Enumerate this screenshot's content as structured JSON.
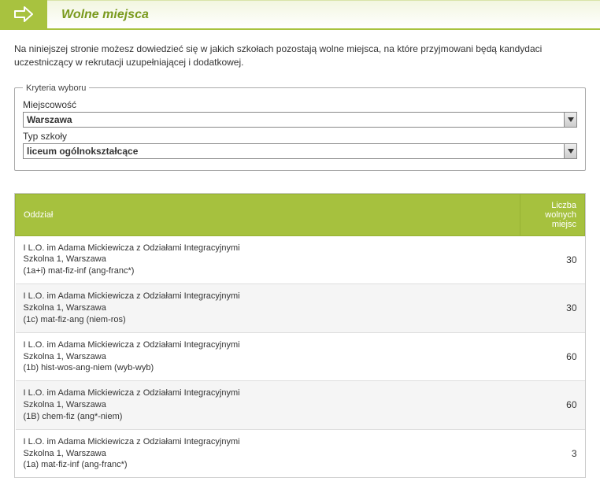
{
  "header": {
    "title": "Wolne miejsca"
  },
  "intro_text": "Na niniejszej stronie możesz dowiedzieć się w jakich szkołach pozostają wolne miejsca, na które przyjmowani będą kandydaci uczestniczący w rekrutacji uzupełniającej i dodatkowej.",
  "criteria": {
    "legend": "Kryteria wyboru",
    "city_label": "Miejscowość",
    "city_value": "Warszawa",
    "type_label": "Typ szkoły",
    "type_value": "liceum ogólnokształcące"
  },
  "table": {
    "columns": {
      "department": "Oddział",
      "free_count": "Liczba wolnych miejsc"
    },
    "rows": [
      {
        "line1": "I L.O. im Adama Mickiewicza z Odziałami Integracyjnymi",
        "line2": "Szkolna 1, Warszawa",
        "line3": "(1a+i) mat-fiz-inf (ang-franc*)",
        "count": "30"
      },
      {
        "line1": "I L.O. im Adama Mickiewicza z Odziałami Integracyjnymi",
        "line2": "Szkolna 1, Warszawa",
        "line3": "(1c) mat-fiz-ang (niem-ros)",
        "count": "30"
      },
      {
        "line1": "I L.O. im Adama Mickiewicza z Odziałami Integracyjnymi",
        "line2": "Szkolna 1, Warszawa",
        "line3": "(1b) hist-wos-ang-niem (wyb-wyb)",
        "count": "60"
      },
      {
        "line1": "I L.O. im Adama Mickiewicza z Odziałami Integracyjnymi",
        "line2": "Szkolna 1, Warszawa",
        "line3": "(1B) chem-fiz (ang*-niem)",
        "count": "60"
      },
      {
        "line1": "I L.O. im Adama Mickiewicza z Odziałami Integracyjnymi",
        "line2": "Szkolna 1, Warszawa",
        "line3": "(1a) mat-fiz-inf (ang-franc*)",
        "count": "3"
      }
    ]
  },
  "colors": {
    "accent": "#a6c13e",
    "accent_dark": "#7a9a1e",
    "row_alt": "#f5f5f5",
    "border": "#cccccc"
  }
}
